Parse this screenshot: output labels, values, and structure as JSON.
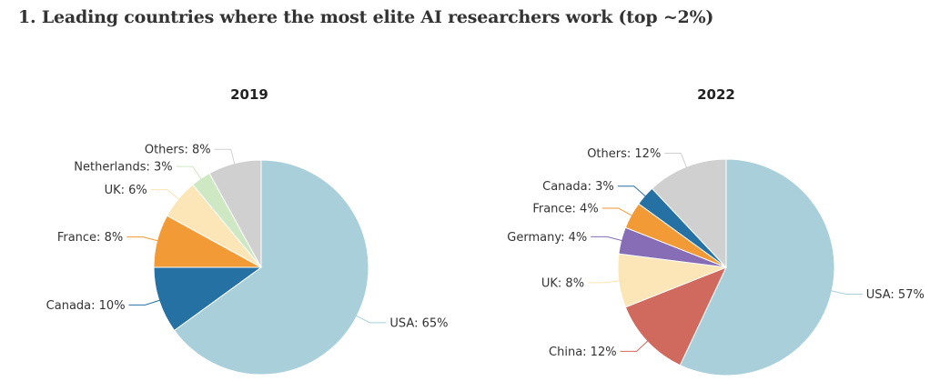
{
  "page": {
    "title": "1. Leading countries where the most elite AI researchers work (top ~2%)"
  },
  "chart_data": [
    {
      "type": "pie",
      "title": "2019",
      "slices": [
        {
          "label": "USA",
          "value": 65,
          "text": "USA: 65%",
          "color": "#a9d0da"
        },
        {
          "label": "Canada",
          "value": 10,
          "text": "Canada: 10%",
          "color": "#2571a3"
        },
        {
          "label": "France",
          "value": 8,
          "text": "France: 8%",
          "color": "#f29a36"
        },
        {
          "label": "UK",
          "value": 6,
          "text": "UK: 6%",
          "color": "#fce5b7"
        },
        {
          "label": "Netherlands",
          "value": 3,
          "text": "Netherlands: 3%",
          "color": "#cfe8c4"
        },
        {
          "label": "Others",
          "value": 8,
          "text": "Others: 8%",
          "color": "#d0d0d0"
        }
      ]
    },
    {
      "type": "pie",
      "title": "2022",
      "slices": [
        {
          "label": "USA",
          "value": 57,
          "text": "USA: 57%",
          "color": "#a9d0da"
        },
        {
          "label": "China",
          "value": 12,
          "text": "China: 12%",
          "color": "#d06a5f"
        },
        {
          "label": "UK",
          "value": 8,
          "text": "UK: 8%",
          "color": "#fce5b7"
        },
        {
          "label": "Germany",
          "value": 4,
          "text": "Germany: 4%",
          "color": "#866db5"
        },
        {
          "label": "France",
          "value": 4,
          "text": "France: 4%",
          "color": "#f29a36"
        },
        {
          "label": "Canada",
          "value": 3,
          "text": "Canada: 3%",
          "color": "#2571a3"
        },
        {
          "label": "Others",
          "value": 12,
          "text": "Others: 12%",
          "color": "#d0d0d0"
        }
      ]
    }
  ]
}
